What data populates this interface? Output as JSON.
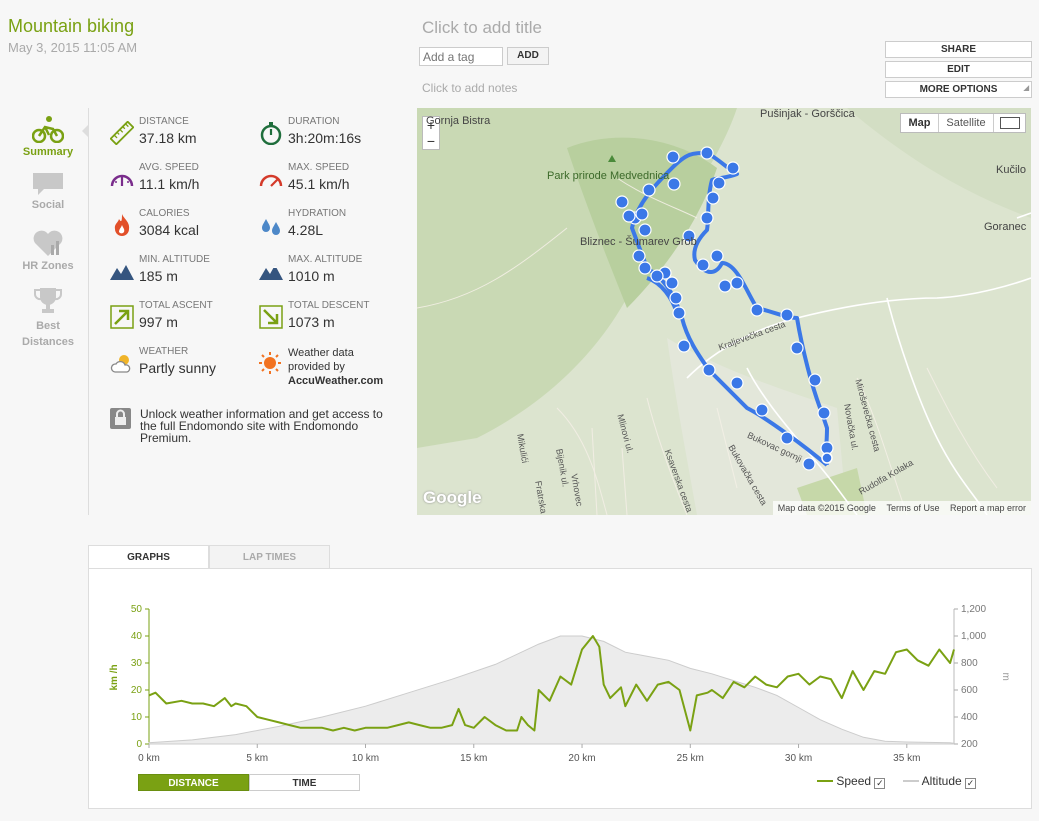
{
  "activity": {
    "title": "Mountain biking",
    "date": "May 3, 2015 11:05 AM"
  },
  "header": {
    "add_title": "Click to add title",
    "tag_placeholder": "Add a tag",
    "add_button": "ADD",
    "add_notes": "Click to add notes"
  },
  "actions": {
    "share": "SHARE",
    "edit": "EDIT",
    "more": "MORE OPTIONS"
  },
  "sidebar": {
    "items": [
      {
        "label": "Summary",
        "icon": "bike-icon",
        "active": true
      },
      {
        "label": "Social",
        "icon": "speech-bubble-icon"
      },
      {
        "label": "HR Zones",
        "icon": "heart-chart-icon"
      },
      {
        "label": "Best Distances",
        "icon": "trophy-icon"
      }
    ]
  },
  "stats": [
    {
      "label": "Distance",
      "value": "37.18 km",
      "icon": "ruler-icon"
    },
    {
      "label": "Duration",
      "value": "3h:20m:16s",
      "icon": "stopwatch-icon"
    },
    {
      "label": "Avg. Speed",
      "value": "11.1 km/h",
      "icon": "speedometer-avg-icon"
    },
    {
      "label": "Max. Speed",
      "value": "45.1 km/h",
      "icon": "speedometer-max-icon"
    },
    {
      "label": "Calories",
      "value": "3084 kcal",
      "icon": "flame-icon"
    },
    {
      "label": "Hydration",
      "value": "4.28L",
      "icon": "water-drops-icon"
    },
    {
      "label": "Min. Altitude",
      "value": "185 m",
      "icon": "mountain-icon"
    },
    {
      "label": "Max. Altitude",
      "value": "1010 m",
      "icon": "mountain-peak-icon"
    },
    {
      "label": "Total Ascent",
      "value": "997 m",
      "icon": "arrow-up-right-icon"
    },
    {
      "label": "Total Descent",
      "value": "1073 m",
      "icon": "arrow-down-right-icon"
    },
    {
      "label": "Weather",
      "value": "Partly sunny",
      "icon": "partly-sunny-icon"
    }
  ],
  "weather_credit": {
    "line1": "Weather data",
    "line2": "provided by",
    "brand": "AccuWeather.com"
  },
  "promo": "Unlock weather information and get access to the full Endomondo site with Endomondo Premium.",
  "map": {
    "type_map": "Map",
    "type_satellite": "Satellite",
    "zoom_in": "+",
    "zoom_out": "−",
    "labels": {
      "gornja": "Gornja Bistra",
      "pusinjak": "Pušinjak - Gorščica",
      "park": "Park prirode Medvednica",
      "bliznec": "Bliznec - Šumarev Grob",
      "kucilo": "Kučilo",
      "goranec": "Goranec",
      "kraljevecka": "Kraljevečka cesta",
      "miroslavecka": "Miroševečka cesta",
      "novacka": "Novačka ul.",
      "rudolfa": "Rudolfa Kolaka",
      "bukovac_gornji": "Bukovac gornji",
      "bukovacka": "Bukovačka cesta",
      "minovi": "Mlinovi ul.",
      "ksaverska": "Ksaverska cesta",
      "bijenik": "Bijenik ul.",
      "vrhovec": "Vrhovec",
      "mikulici": "Mikulići",
      "fratrska": "Fratrska"
    },
    "logo": "Google",
    "footer": {
      "data": "Map data ©2015 Google",
      "terms": "Terms of Use",
      "report": "Report a map error"
    }
  },
  "tabs": {
    "graphs": "GRAPHS",
    "laps": "LAP TIMES"
  },
  "toggle": {
    "distance": "DISTANCE",
    "time": "TIME"
  },
  "legend": {
    "speed": "Speed",
    "altitude": "Altitude",
    "check": "✓"
  },
  "colors": {
    "accent": "#7aa113",
    "route": "#3b78e7",
    "altitude_fill": "#ececec"
  },
  "chart_data": {
    "type": "line",
    "x_unit": "km",
    "xticks": [
      "0 km",
      "5 km",
      "10 km",
      "15 km",
      "20 km",
      "25 km",
      "30 km",
      "35 km"
    ],
    "xlim": [
      0,
      37.18
    ],
    "ylabel_left": "km /h",
    "ylim_left": [
      0,
      50
    ],
    "yticks_left": [
      "0",
      "10",
      "20",
      "30",
      "40",
      "50"
    ],
    "ylabel_right": "m",
    "ylim_right": [
      200,
      1200
    ],
    "yticks_right": [
      "200",
      "400",
      "600",
      "800",
      "1,000",
      "1,200"
    ],
    "series": [
      {
        "name": "Speed",
        "axis": "left",
        "x": [
          0,
          0.3,
          0.8,
          1.5,
          2,
          2.5,
          3,
          3.5,
          3.8,
          4,
          4.5,
          5,
          5.5,
          6,
          6.5,
          7,
          7.5,
          8,
          8.5,
          9,
          9.5,
          10,
          10.5,
          11,
          11.5,
          12,
          12.5,
          13,
          13.5,
          14,
          14.3,
          14.6,
          15,
          15.5,
          16,
          16.5,
          17,
          17.2,
          17.5,
          17.8,
          18,
          18.5,
          19,
          19.5,
          20,
          20.5,
          20.8,
          21,
          21.3,
          21.8,
          22,
          22.5,
          23,
          23.5,
          24,
          24.5,
          25,
          25.3,
          25.8,
          26,
          26.5,
          27,
          27.5,
          28,
          28.5,
          29,
          29.5,
          30,
          30.5,
          31,
          31.5,
          32,
          32.5,
          33,
          33.5,
          34,
          34.5,
          35,
          35.5,
          36,
          36.5,
          37,
          37.18
        ],
        "values": [
          18,
          19,
          15,
          16,
          15,
          15,
          14,
          17,
          14,
          15,
          14,
          10,
          9,
          8,
          7,
          6,
          6,
          6,
          5,
          6,
          5,
          6,
          6,
          6,
          7,
          8,
          7,
          6,
          6,
          7,
          13,
          7,
          6,
          10,
          7,
          5,
          5,
          10,
          7,
          5,
          20,
          16,
          25,
          22,
          35,
          40,
          36,
          22,
          17,
          21,
          14,
          22,
          16,
          22,
          23,
          20,
          5,
          18,
          19,
          20,
          17,
          23,
          21,
          25,
          22,
          21,
          25,
          26,
          22,
          25,
          24,
          17,
          27,
          20,
          27,
          26,
          34,
          35,
          31,
          29,
          35,
          30,
          35
        ],
        "color": "#7aa113"
      },
      {
        "name": "Altitude",
        "axis": "right",
        "x": [
          0,
          2,
          4,
          6,
          8,
          10,
          12,
          14,
          16,
          18,
          19,
          20,
          21,
          22,
          23,
          24,
          25,
          26,
          27,
          28,
          29,
          30,
          31,
          32,
          33,
          34,
          35,
          36,
          37,
          37.18
        ],
        "values": [
          210,
          230,
          270,
          330,
          400,
          480,
          580,
          680,
          790,
          940,
          1000,
          1000,
          960,
          880,
          850,
          820,
          760,
          720,
          670,
          620,
          560,
          470,
          380,
          310,
          250,
          220,
          215,
          212,
          210,
          205
        ],
        "color": "#cccccc"
      }
    ]
  }
}
